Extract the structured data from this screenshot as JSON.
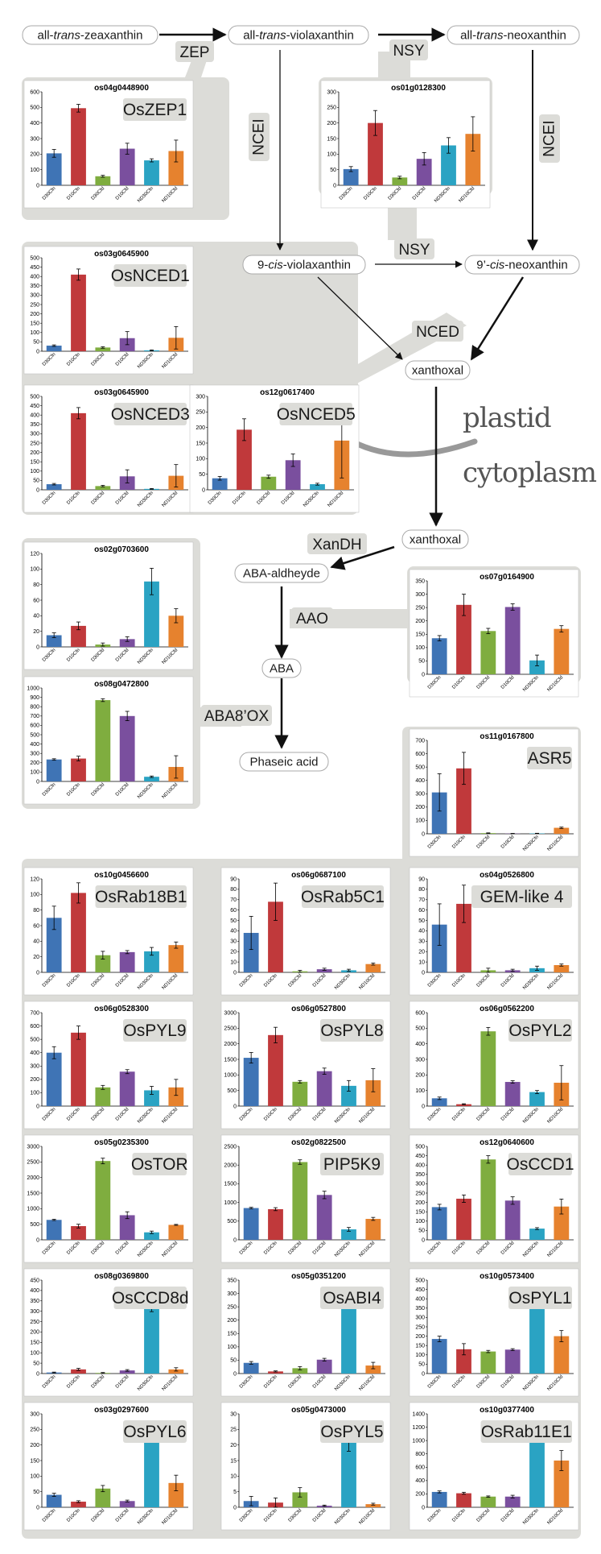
{
  "colors": {
    "D30Cfn": "#3f74b5",
    "D10Cfn": "#c0393b",
    "D30Cfd": "#7fad3f",
    "D10Cfd": "#7a4f9e",
    "ND30Cfn": "#2aa3c3",
    "ND10Cfd": "#e6822e"
  },
  "pathway": {
    "nodes": {
      "zeaxanthin": {
        "pre": "all-",
        "it": "trans",
        "post": "-zeaxanthin"
      },
      "violaxanthin": {
        "pre": "all-",
        "it": "trans",
        "post": "-violaxanthin"
      },
      "neoxanthin": {
        "pre": "all-",
        "it": "trans",
        "post": "-neoxanthin"
      },
      "cis_violaxanthin": {
        "pre": "9-",
        "it": "cis",
        "post": "-violaxanthin"
      },
      "cis_neoxanthin": {
        "pre": "9’-",
        "it": "cis",
        "post": "-neoxanthin"
      },
      "xanthoxal_plastid": "xanthoxal",
      "xanthoxal_cyto": "xanthoxal",
      "aba_aldehyde": "ABA-aldheyde",
      "aba": "ABA",
      "phaseic": "Phaseic acid"
    },
    "enzymes": {
      "zep": "ZEP",
      "nsy_top": "NSY",
      "ncei_left": "NCEI",
      "ncei_right": "NCEI",
      "nsy_mid": "NSY",
      "nced": "NCED",
      "xandh": "XanDH",
      "aao": "AAO",
      "aba8ox": "ABA8’OX"
    },
    "compartments": {
      "plastid": "plastid",
      "cytoplasm": "cytoplasm"
    }
  },
  "chart_data": [
    {
      "type": "bar",
      "gene": "os04g0448900",
      "protein": "OsZEP1",
      "categories": [
        "D30Cfn",
        "D10Cfn",
        "D30Cfd",
        "D10Cfd",
        "ND30Cfn",
        "ND10Cfd"
      ],
      "values": [
        205,
        495,
        58,
        235,
        160,
        220
      ],
      "errors": [
        25,
        25,
        6,
        35,
        10,
        70
      ],
      "ylim": [
        0,
        600
      ],
      "ticks": [
        0,
        100,
        200,
        300,
        400,
        500,
        600
      ]
    },
    {
      "type": "bar",
      "gene": "os01g0128300",
      "protein": "",
      "categories": [
        "D30Cfn",
        "D10Cfn",
        "D30Cfd",
        "D10Cfd",
        "ND30Cfn",
        "ND10Cfd"
      ],
      "values": [
        52,
        200,
        25,
        85,
        128,
        165
      ],
      "errors": [
        8,
        40,
        4,
        20,
        25,
        55
      ],
      "ylim": [
        0,
        300
      ],
      "ticks": [
        0,
        50,
        100,
        150,
        200,
        250,
        300
      ]
    },
    {
      "type": "bar",
      "gene": "os03g0645900",
      "protein": "OsNCED1",
      "categories": [
        "D30Cfn",
        "D10Cfn",
        "D30Cfd",
        "D10Cfd",
        "ND30Cfn",
        "ND10Cfd"
      ],
      "values": [
        30,
        410,
        20,
        70,
        5,
        72
      ],
      "errors": [
        4,
        30,
        4,
        35,
        2,
        60
      ],
      "ylim": [
        0,
        500
      ],
      "ticks": [
        0,
        50,
        100,
        150,
        200,
        250,
        300,
        350,
        400,
        450,
        500
      ]
    },
    {
      "type": "bar",
      "gene": "os03g0645900",
      "protein": "OsNCED3",
      "categories": [
        "D30Cfn",
        "D10Cfn",
        "D30Cfd",
        "D10Cfd",
        "ND30Cfn",
        "ND10Cfd"
      ],
      "values": [
        30,
        410,
        20,
        72,
        5,
        75
      ],
      "errors": [
        4,
        30,
        4,
        35,
        2,
        60
      ],
      "ylim": [
        0,
        500
      ],
      "ticks": [
        0,
        50,
        100,
        150,
        200,
        250,
        300,
        350,
        400,
        450,
        500
      ]
    },
    {
      "type": "bar",
      "gene": "os12g0617400",
      "protein": "OsNCED5",
      "categories": [
        "D30Cfn",
        "D10Cfn",
        "D30Cfd",
        "D10Cfd",
        "ND30Cfn",
        "ND10Cfd"
      ],
      "values": [
        37,
        193,
        42,
        95,
        18,
        158
      ],
      "errors": [
        6,
        35,
        5,
        20,
        3,
        120
      ],
      "ylim": [
        0,
        300
      ],
      "ticks": [
        0,
        50,
        100,
        150,
        200,
        250,
        300
      ]
    },
    {
      "type": "bar",
      "gene": "os02g0703600",
      "protein": "",
      "categories": [
        "D30Cfn",
        "D10Cfn",
        "D30Cfd",
        "D10Cfd",
        "ND30Cfn",
        "ND10Cfd"
      ],
      "values": [
        15,
        27,
        3,
        10,
        84,
        40
      ],
      "errors": [
        3,
        5,
        2,
        3,
        17,
        9
      ],
      "ylim": [
        0,
        120
      ],
      "ticks": [
        0,
        20,
        40,
        60,
        80,
        100,
        120
      ]
    },
    {
      "type": "bar",
      "gene": "os08g0472800",
      "protein": "",
      "categories": [
        "D30Cfn",
        "D10Cfn",
        "D30Cfd",
        "D10Cfd",
        "ND30Cfn",
        "ND10Cfd"
      ],
      "values": [
        235,
        245,
        870,
        700,
        50,
        155
      ],
      "errors": [
        8,
        25,
        15,
        50,
        8,
        120
      ],
      "ylim": [
        0,
        1000
      ],
      "ticks": [
        0,
        100,
        200,
        300,
        400,
        500,
        600,
        700,
        800,
        900,
        1000
      ]
    },
    {
      "type": "bar",
      "gene": "os07g0164900",
      "protein": "",
      "categories": [
        "D30Cfn",
        "D10Cfn",
        "D30Cfd",
        "D10Cfd",
        "ND30Cfn",
        "ND10Cfd"
      ],
      "values": [
        135,
        260,
        162,
        252,
        52,
        170
      ],
      "errors": [
        10,
        40,
        10,
        12,
        20,
        12
      ],
      "ylim": [
        0,
        350
      ],
      "ticks": [
        0,
        50,
        100,
        150,
        200,
        250,
        300,
        350
      ]
    },
    {
      "type": "bar",
      "gene": "os11g0167800",
      "protein": "ASR5",
      "categories": [
        "D30Cfn",
        "D10Cfn",
        "D30Cfd",
        "D10Cfd",
        "ND30Cfn",
        "ND10Cfd"
      ],
      "values": [
        310,
        490,
        5,
        2,
        3,
        45
      ],
      "errors": [
        140,
        120,
        2,
        1,
        1,
        5
      ],
      "ylim": [
        0,
        700
      ],
      "ticks": [
        0,
        100,
        200,
        300,
        400,
        500,
        600,
        700
      ]
    },
    {
      "type": "bar",
      "gene": "os10g0456600",
      "protein": "OsRab18B1",
      "categories": [
        "D30Cfn",
        "D10Cfn",
        "D30Cfd",
        "D10Cfd",
        "ND30Cfn",
        "ND10Cfd"
      ],
      "values": [
        70,
        102,
        22,
        26,
        27,
        35
      ],
      "errors": [
        15,
        13,
        5,
        2,
        5,
        4
      ],
      "ylim": [
        0,
        120
      ],
      "ticks": [
        0,
        20,
        40,
        60,
        80,
        100,
        120
      ]
    },
    {
      "type": "bar",
      "gene": "os06g0687100",
      "protein": "OsRab5C1",
      "categories": [
        "D30Cfn",
        "D10Cfn",
        "D30Cfd",
        "D10Cfd",
        "ND30Cfn",
        "ND10Cfd"
      ],
      "values": [
        38,
        68,
        1,
        3,
        2,
        8
      ],
      "errors": [
        16,
        18,
        1,
        1,
        1,
        1
      ],
      "ylim": [
        0,
        90
      ],
      "ticks": [
        0,
        10,
        20,
        30,
        40,
        50,
        60,
        70,
        80,
        90
      ]
    },
    {
      "type": "bar",
      "gene": "os04g0526800",
      "protein": "GEM-like 4",
      "categories": [
        "D30Cfn",
        "D10Cfn",
        "D30Cfd",
        "D10Cfd",
        "ND30Cfn",
        "ND10Cfd"
      ],
      "values": [
        46,
        66,
        2,
        2,
        4,
        7
      ],
      "errors": [
        20,
        18,
        2,
        1,
        2,
        1
      ],
      "ylim": [
        0,
        90
      ],
      "ticks": [
        0,
        10,
        20,
        30,
        40,
        50,
        60,
        70,
        80,
        90
      ]
    },
    {
      "type": "bar",
      "gene": "os06g0528300",
      "protein": "OsPYL9",
      "categories": [
        "D30Cfn",
        "D10Cfn",
        "D30Cfd",
        "D10Cfd",
        "ND30Cfn",
        "ND10Cfd"
      ],
      "values": [
        400,
        550,
        140,
        258,
        118,
        140
      ],
      "errors": [
        45,
        50,
        15,
        15,
        30,
        60
      ],
      "ylim": [
        0,
        700
      ],
      "ticks": [
        0,
        100,
        200,
        300,
        400,
        500,
        600,
        700
      ]
    },
    {
      "type": "bar",
      "gene": "os06g0527800",
      "protein": "OsPYL8",
      "categories": [
        "D30Cfn",
        "D10Cfn",
        "D30Cfd",
        "D10Cfd",
        "ND30Cfn",
        "ND10Cfd"
      ],
      "values": [
        1550,
        2280,
        780,
        1120,
        650,
        830
      ],
      "errors": [
        170,
        250,
        40,
        100,
        170,
        370
      ],
      "ylim": [
        0,
        3000
      ],
      "ticks": [
        0,
        500,
        1000,
        1500,
        2000,
        2500,
        3000
      ]
    },
    {
      "type": "bar",
      "gene": "os06g0562200",
      "protein": "OsPYL2",
      "categories": [
        "D30Cfn",
        "D10Cfn",
        "D30Cfd",
        "D10Cfd",
        "ND30Cfn",
        "ND10Cfd"
      ],
      "values": [
        50,
        12,
        480,
        155,
        90,
        150
      ],
      "errors": [
        8,
        3,
        25,
        8,
        10,
        110
      ],
      "ylim": [
        0,
        600
      ],
      "ticks": [
        0,
        100,
        200,
        300,
        400,
        500,
        600
      ]
    },
    {
      "type": "bar",
      "gene": "os05g0235300",
      "protein": "OsTOR",
      "categories": [
        "D30Cfn",
        "D10Cfn",
        "D30Cfd",
        "D10Cfd",
        "ND30Cfn",
        "ND10Cfd"
      ],
      "values": [
        640,
        440,
        2530,
        790,
        240,
        480
      ],
      "errors": [
        20,
        60,
        90,
        110,
        40,
        15
      ],
      "ylim": [
        0,
        3000
      ],
      "ticks": [
        0,
        500,
        1000,
        1500,
        2000,
        2500,
        3000
      ]
    },
    {
      "type": "bar",
      "gene": "os02g0822500",
      "protein": "PIP5K9",
      "categories": [
        "D30Cfn",
        "D10Cfn",
        "D30Cfd",
        "D10Cfd",
        "ND30Cfn",
        "ND10Cfd"
      ],
      "values": [
        850,
        820,
        2080,
        1200,
        280,
        560
      ],
      "errors": [
        20,
        40,
        60,
        100,
        50,
        40
      ],
      "ylim": [
        0,
        2500
      ],
      "ticks": [
        0,
        500,
        1000,
        1500,
        2000,
        2500
      ]
    },
    {
      "type": "bar",
      "gene": "os12g0640600",
      "protein": "OsCCD1",
      "categories": [
        "D30Cfn",
        "D10Cfn",
        "D30Cfd",
        "D10Cfd",
        "ND30Cfn",
        "ND10Cfd"
      ],
      "values": [
        175,
        220,
        430,
        210,
        60,
        178
      ],
      "errors": [
        15,
        20,
        20,
        20,
        5,
        40
      ],
      "ylim": [
        0,
        500
      ],
      "ticks": [
        0,
        50,
        100,
        150,
        200,
        250,
        300,
        350,
        400,
        450,
        500
      ]
    },
    {
      "type": "bar",
      "gene": "os08g0369800",
      "protein": "OsCCD8d",
      "categories": [
        "D30Cfn",
        "D10Cfn",
        "D30Cfd",
        "D10Cfd",
        "ND30Cfn",
        "ND10Cfd"
      ],
      "values": [
        5,
        20,
        3,
        15,
        348,
        20
      ],
      "errors": [
        2,
        5,
        2,
        4,
        50,
        8
      ],
      "ylim": [
        0,
        450
      ],
      "ticks": [
        0,
        50,
        100,
        150,
        200,
        250,
        300,
        350,
        400,
        450
      ]
    },
    {
      "type": "bar",
      "gene": "os05g0351200",
      "protein": "OsABI4",
      "categories": [
        "D30Cfn",
        "D10Cfn",
        "D30Cfd",
        "D10Cfd",
        "ND30Cfn",
        "ND10Cfd"
      ],
      "values": [
        40,
        8,
        20,
        52,
        275,
        30
      ],
      "errors": [
        5,
        2,
        6,
        5,
        25,
        12
      ],
      "ylim": [
        0,
        350
      ],
      "ticks": [
        0,
        50,
        100,
        150,
        200,
        250,
        300,
        350
      ]
    },
    {
      "type": "bar",
      "gene": "os10g0573400",
      "protein": "OsPYL1",
      "categories": [
        "D30Cfn",
        "D10Cfn",
        "D30Cfd",
        "D10Cfd",
        "ND30Cfn",
        "ND10Cfd"
      ],
      "values": [
        185,
        130,
        118,
        128,
        410,
        200
      ],
      "errors": [
        15,
        30,
        6,
        5,
        30,
        30
      ],
      "ylim": [
        0,
        500
      ],
      "ticks": [
        0,
        50,
        100,
        150,
        200,
        250,
        300,
        350,
        400,
        450,
        500
      ]
    },
    {
      "type": "bar",
      "gene": "os03g0297600",
      "protein": "OsPYL6",
      "categories": [
        "D30Cfn",
        "D10Cfn",
        "D30Cfd",
        "D10Cfd",
        "ND30Cfn",
        "ND10Cfd"
      ],
      "values": [
        40,
        18,
        60,
        20,
        232,
        78
      ],
      "errors": [
        5,
        3,
        10,
        3,
        8,
        25
      ],
      "ylim": [
        0,
        300
      ],
      "ticks": [
        0,
        50,
        100,
        150,
        200,
        250,
        300
      ]
    },
    {
      "type": "bar",
      "gene": "os05g0473000",
      "protein": "OsPYL5",
      "categories": [
        "D30Cfn",
        "D10Cfn",
        "D30Cfd",
        "D10Cfd",
        "ND30Cfn",
        "ND10Cfd"
      ],
      "values": [
        2,
        1.5,
        4.8,
        0.5,
        21,
        1
      ],
      "errors": [
        1.5,
        1.5,
        1.5,
        0.2,
        3,
        0.3
      ],
      "ylim": [
        0,
        30
      ],
      "ticks": [
        0,
        5,
        10,
        15,
        20,
        25,
        30
      ]
    },
    {
      "type": "bar",
      "gene": "os10g0377400",
      "protein": "OsRab11E1",
      "categories": [
        "D30Cfn",
        "D10Cfn",
        "D30Cfd",
        "D10Cfd",
        "ND30Cfn",
        "ND10Cfd"
      ],
      "values": [
        230,
        210,
        160,
        160,
        1100,
        700
      ],
      "errors": [
        15,
        15,
        10,
        20,
        120,
        150
      ],
      "ylim": [
        0,
        1400
      ],
      "ticks": [
        0,
        200,
        400,
        600,
        800,
        1000,
        1200,
        1400
      ]
    }
  ]
}
